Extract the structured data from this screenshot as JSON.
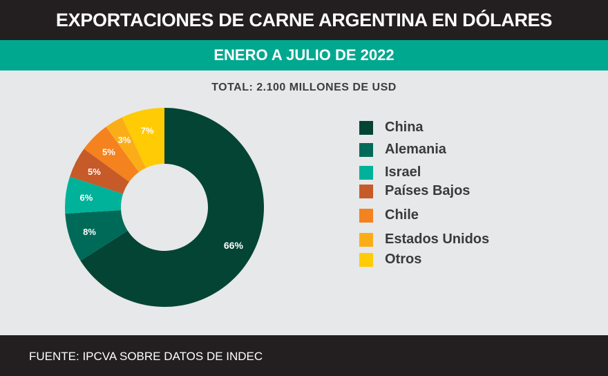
{
  "header": {
    "title": "EXPORTACIONES DE CARNE ARGENTINA EN DÓLARES",
    "subtitle": "ENERO A JULIO DE 2022"
  },
  "footer": {
    "source": "FUENTE:  IPCVA SOBRE DATOS DE INDEC"
  },
  "chart_data": {
    "type": "pie",
    "style": "donut",
    "title": "TOTAL: 2.100 MILLONES DE USD",
    "unit": "%",
    "legend_position": "right",
    "slices": [
      {
        "label": "China",
        "value": 66,
        "display": "66%",
        "color": "#034434"
      },
      {
        "label": "Alemania",
        "value": 8,
        "display": "8%",
        "color": "#006a59"
      },
      {
        "label": "Israel",
        "value": 6,
        "display": "6%",
        "color": "#00b299"
      },
      {
        "label": "Países Bajos",
        "value": 5,
        "display": "5%",
        "color": "#c65a28"
      },
      {
        "label": "Chile",
        "value": 5,
        "display": "5%",
        "color": "#f4821f"
      },
      {
        "label": "Estados Unidos",
        "value": 3,
        "display": "3%",
        "color": "#fbad18"
      },
      {
        "label": "Otros",
        "value": 7,
        "display": "7%",
        "color": "#ffcb05"
      }
    ]
  }
}
